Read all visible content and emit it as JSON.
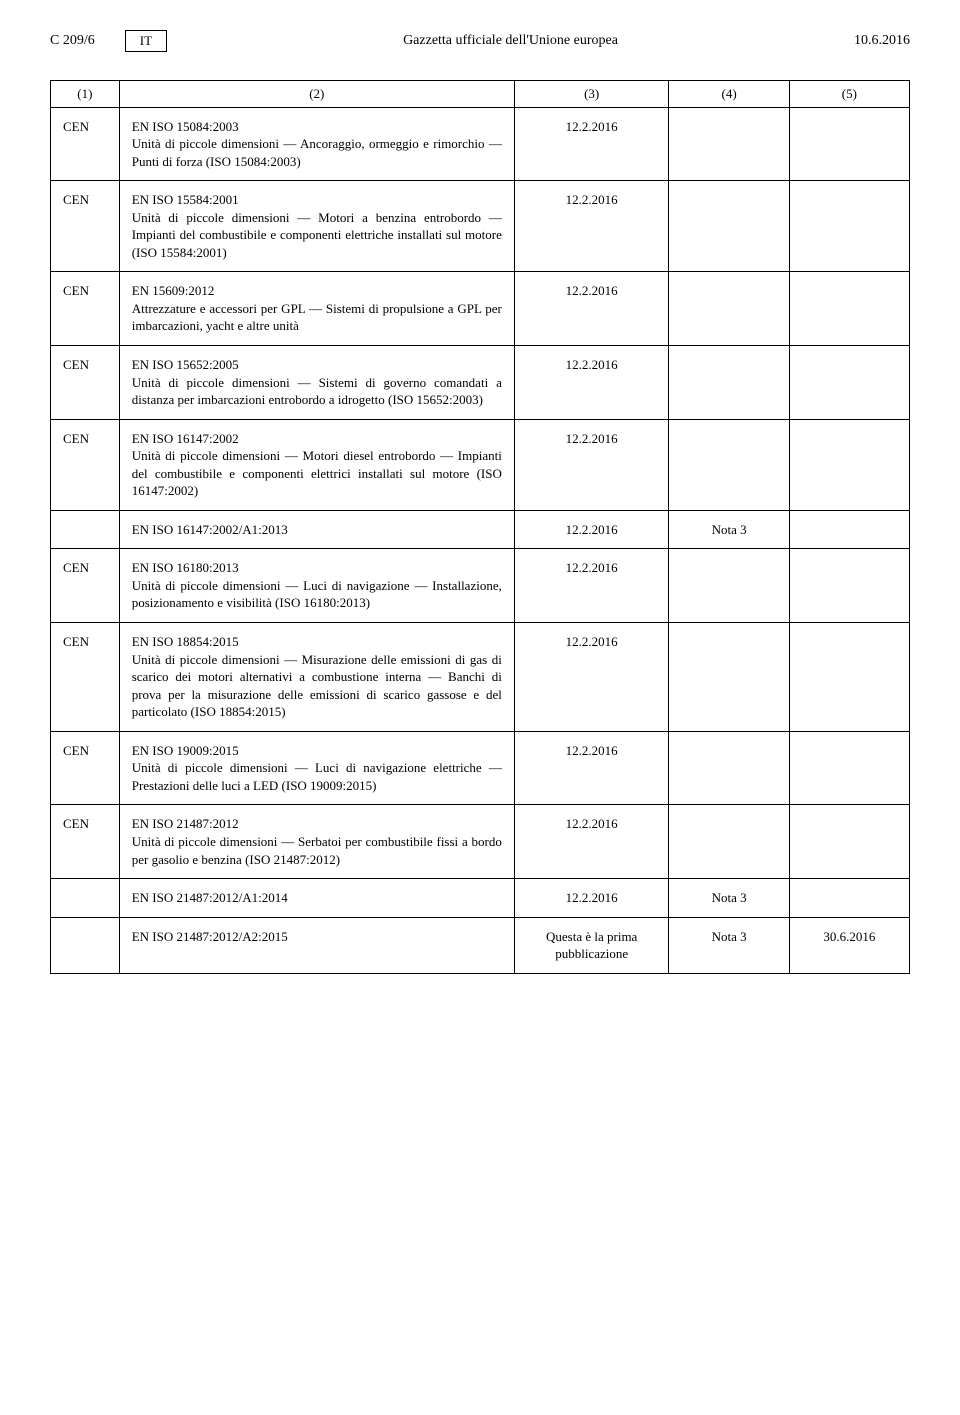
{
  "header": {
    "page_ref": "C 209/6",
    "lang": "IT",
    "journal": "Gazzetta ufficiale dell'Unione europea",
    "date": "10.6.2016"
  },
  "columns": {
    "h1": "(1)",
    "h2": "(2)",
    "h3": "(3)",
    "h4": "(4)",
    "h5": "(5)"
  },
  "rows": [
    {
      "org": "CEN",
      "title": "EN ISO 15084:2003",
      "desc": "Unità di piccole dimensioni — Ancoraggio, ormeggio e rimorchio — Punti di forza (ISO 15084:2003)",
      "c3": "12.2.2016",
      "c4": "",
      "c5": ""
    },
    {
      "org": "CEN",
      "title": "EN ISO 15584:2001",
      "desc": "Unità di piccole dimensioni — Motori a benzina entrobordo — Impianti del combustibile e componenti elettriche installati sul motore (ISO 15584:2001)",
      "c3": "12.2.2016",
      "c4": "",
      "c5": ""
    },
    {
      "org": "CEN",
      "title": "EN 15609:2012",
      "desc": "Attrezzature e accessori per GPL — Sistemi di propulsione a GPL per imbarcazioni, yacht e altre unità",
      "c3": "12.2.2016",
      "c4": "",
      "c5": ""
    },
    {
      "org": "CEN",
      "title": "EN ISO 15652:2005",
      "desc": "Unità di piccole dimensioni — Sistemi di governo comandati a distanza per imbarcazioni entrobordo a idrogetto (ISO 15652:2003)",
      "c3": "12.2.2016",
      "c4": "",
      "c5": ""
    },
    {
      "org": "CEN",
      "title": "EN ISO 16147:2002",
      "desc": "Unità di piccole dimensioni — Motori diesel entrobordo — Impianti del combustibile e componenti elettrici installati sul motore (ISO 16147:2002)",
      "c3": "12.2.2016",
      "c4": "",
      "c5": "",
      "amendments": [
        {
          "title": "EN ISO 16147:2002/A1:2013",
          "c3": "12.2.2016",
          "c4": "Nota 3",
          "c5": ""
        }
      ]
    },
    {
      "org": "CEN",
      "title": "EN ISO 16180:2013",
      "desc": "Unità di piccole dimensioni — Luci di navigazione — Installazione, posizionamento e visibilità (ISO 16180:2013)",
      "c3": "12.2.2016",
      "c4": "",
      "c5": ""
    },
    {
      "org": "CEN",
      "title": "EN ISO 18854:2015",
      "desc": "Unità di piccole dimensioni — Misurazione delle emissioni di gas di scarico dei motori alternativi a combustione interna — Banchi di prova per la misurazione delle emissioni di scarico gassose e del particolato (ISO 18854:2015)",
      "c3": "12.2.2016",
      "c4": "",
      "c5": ""
    },
    {
      "org": "CEN",
      "title": "EN ISO 19009:2015",
      "desc": "Unità di piccole dimensioni — Luci di navigazione elettriche — Prestazioni delle luci a LED (ISO 19009:2015)",
      "c3": "12.2.2016",
      "c4": "",
      "c5": ""
    },
    {
      "org": "CEN",
      "title": "EN ISO 21487:2012",
      "desc": "Unità di piccole dimensioni — Serbatoi per combustibile fissi a bordo per gasolio e benzina (ISO 21487:2012)",
      "c3": "12.2.2016",
      "c4": "",
      "c5": "",
      "amendments": [
        {
          "title": "EN ISO 21487:2012/A1:2014",
          "c3": "12.2.2016",
          "c4": "Nota 3",
          "c5": ""
        },
        {
          "title": "EN ISO 21487:2012/A2:2015",
          "c3": "Questa è la prima pubblicazione",
          "c4": "Nota 3",
          "c5": "30.6.2016"
        }
      ]
    }
  ]
}
